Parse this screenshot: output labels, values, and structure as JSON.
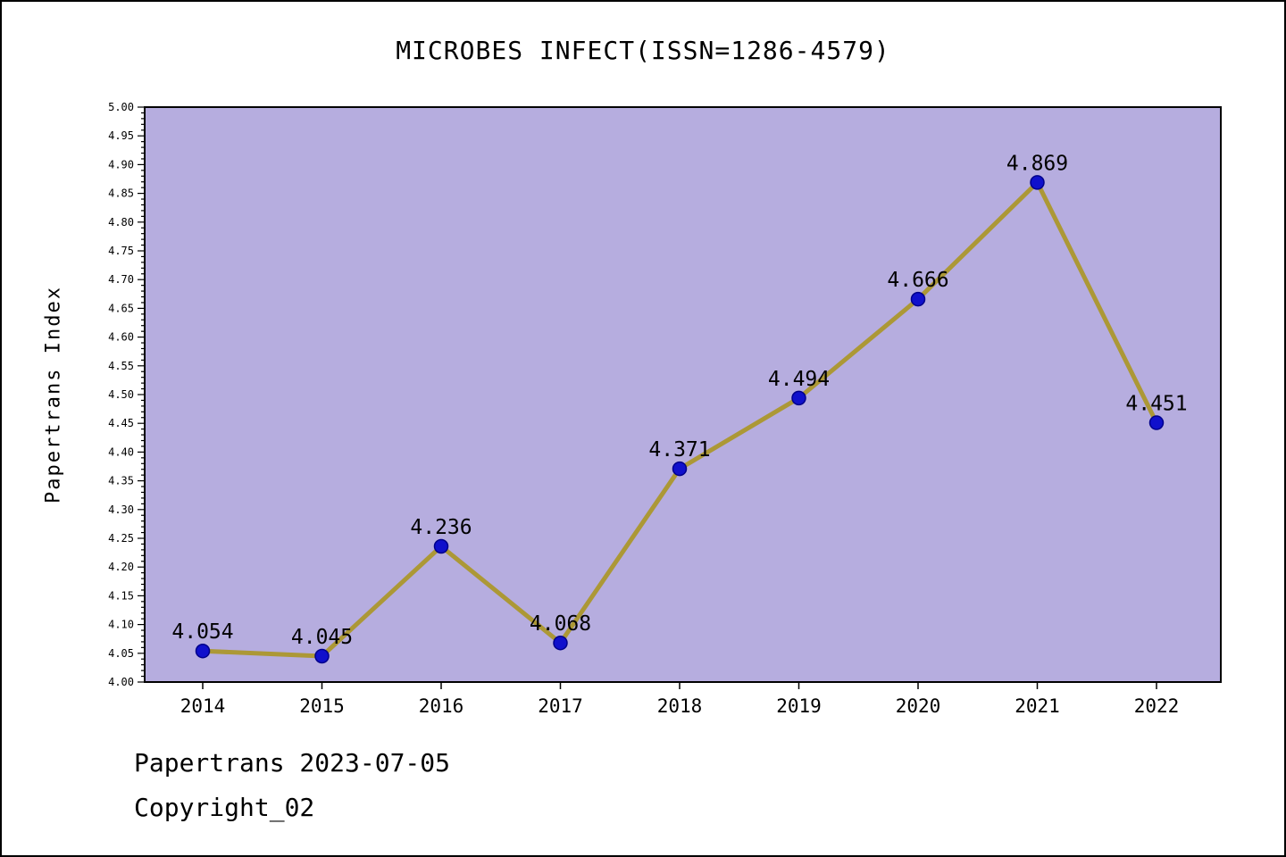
{
  "chart_data": {
    "type": "line",
    "title": "MICROBES INFECT(ISSN=1286-4579)",
    "ylabel": "Papertrans Index",
    "xlabel": "",
    "x": [
      "2014",
      "2015",
      "2016",
      "2017",
      "2018",
      "2019",
      "2020",
      "2021",
      "2022"
    ],
    "series": [
      {
        "name": "Papertrans Index",
        "values": [
          4.054,
          4.045,
          4.236,
          4.068,
          4.371,
          4.494,
          4.666,
          4.869,
          4.451
        ],
        "point_labels": [
          "4.054",
          "4.045",
          "4.236",
          "4.068",
          "4.371",
          "4.494",
          "4.666",
          "4.869",
          "4.451"
        ]
      }
    ],
    "ylim": [
      4.0,
      5.0
    ],
    "ytick_step": 0.05,
    "ytick_minor_step": 0.01,
    "grid": "off",
    "legend": "none",
    "colors": {
      "plot_background": "#b6addf",
      "line": "#ac9836",
      "marker_fill": "#1010cc",
      "marker_edge": "#00008b",
      "axis": "#000000",
      "text": "#000000"
    }
  },
  "footer": {
    "line1": "Papertrans 2023-07-05",
    "line2": "Copyright_02"
  }
}
